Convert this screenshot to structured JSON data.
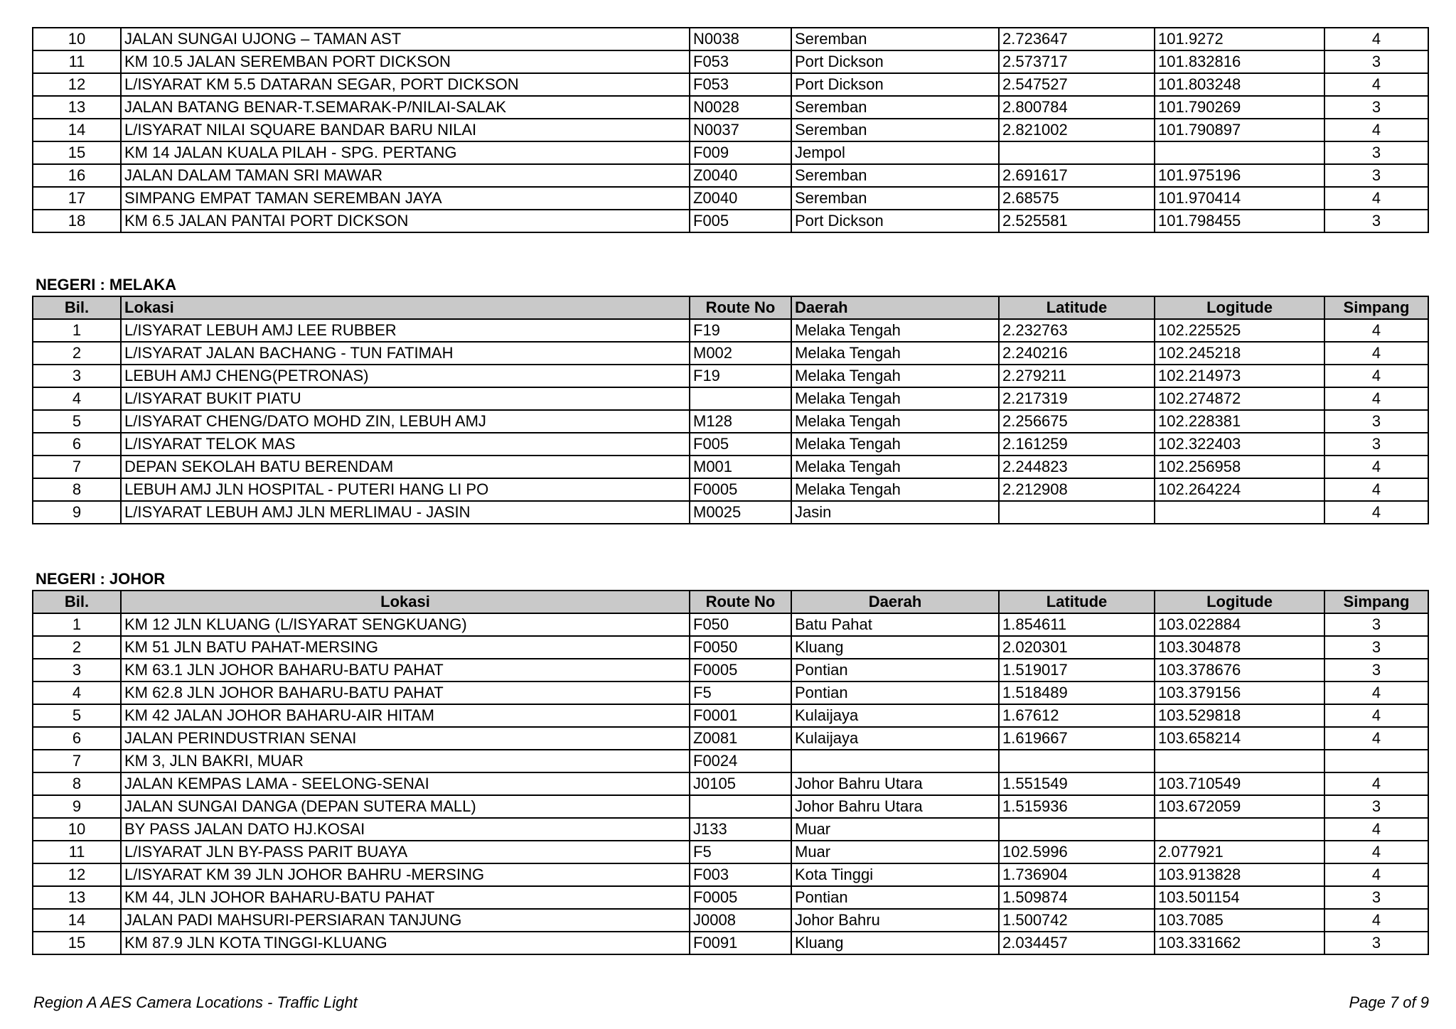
{
  "tables": [
    {
      "rows": [
        [
          "10",
          "JALAN SUNGAI UJONG – TAMAN AST",
          "N0038",
          "Seremban",
          "2.723647",
          "101.9272",
          "4"
        ],
        [
          "11",
          "KM 10.5 JALAN SEREMBAN PORT DICKSON",
          "F053",
          "Port Dickson",
          "2.573717",
          "101.832816",
          "3"
        ],
        [
          "12",
          "L/ISYARAT KM 5.5 DATARAN SEGAR, PORT DICKSON",
          "F053",
          "Port Dickson",
          "2.547527",
          "101.803248",
          "4"
        ],
        [
          "13",
          "JALAN BATANG BENAR-T.SEMARAK-P/NILAI-SALAK",
          "N0028",
          "Seremban",
          "2.800784",
          "101.790269",
          "3"
        ],
        [
          "14",
          "L/ISYARAT NILAI SQUARE BANDAR BARU NILAI",
          "N0037",
          "Seremban",
          "2.821002",
          "101.790897",
          "4"
        ],
        [
          "15",
          "KM 14 JALAN KUALA PILAH - SPG. PERTANG",
          "F009",
          "Jempol",
          null,
          null,
          "3"
        ],
        [
          "16",
          "JALAN DALAM TAMAN SRI MAWAR",
          "Z0040",
          "Seremban",
          "2.691617",
          "101.975196",
          "3"
        ],
        [
          "17",
          "SIMPANG EMPAT TAMAN SEREMBAN JAYA",
          "Z0040",
          "Seremban",
          "2.68575",
          "101.970414",
          "4"
        ],
        [
          "18",
          "KM 6.5 JALAN PANTAI PORT DICKSON",
          "F005",
          "Port Dickson",
          "2.525581",
          "101.798455",
          "3"
        ]
      ]
    },
    {
      "title": "NEGERI : MELAKA",
      "header": [
        "Bil.",
        "Lokasi",
        "Route No",
        "Daerah",
        "Latitude",
        "Logitude",
        "Simpang"
      ],
      "rows": [
        [
          "1",
          "L/ISYARAT LEBUH AMJ LEE RUBBER",
          "F19",
          "Melaka Tengah",
          "2.232763",
          "102.225525",
          "4"
        ],
        [
          "2",
          "L/ISYARAT JALAN BACHANG - TUN FATIMAH",
          "M002",
          "Melaka Tengah",
          "2.240216",
          "102.245218",
          "4"
        ],
        [
          "3",
          "LEBUH AMJ CHENG(PETRONAS)",
          "F19",
          "Melaka Tengah",
          "2.279211",
          "102.214973",
          "4"
        ],
        [
          "4",
          "L/ISYARAT BUKIT PIATU",
          null,
          "Melaka Tengah",
          "2.217319",
          "102.274872",
          "4"
        ],
        [
          "5",
          "L/ISYARAT CHENG/DATO MOHD ZIN, LEBUH AMJ",
          "M128",
          "Melaka Tengah",
          "2.256675",
          "102.228381",
          "3"
        ],
        [
          "6",
          "L/ISYARAT TELOK MAS",
          "F005",
          "Melaka Tengah",
          "2.161259",
          "102.322403",
          "3"
        ],
        [
          "7",
          "DEPAN SEKOLAH BATU BERENDAM",
          "M001",
          "Melaka Tengah",
          "2.244823",
          "102.256958",
          "4"
        ],
        [
          "8",
          "LEBUH AMJ JLN HOSPITAL - PUTERI HANG LI PO",
          "F0005",
          "Melaka Tengah",
          "2.212908",
          "102.264224",
          "4"
        ],
        [
          "9",
          "L/ISYARAT LEBUH AMJ JLN MERLIMAU - JASIN",
          "M0025",
          "Jasin",
          null,
          null,
          "4"
        ]
      ]
    },
    {
      "title": "NEGERI : JOHOR",
      "header": [
        "Bil.",
        "Lokasi",
        "Route No",
        "Daerah",
        "Latitude",
        "Logitude",
        "Simpang"
      ],
      "rows": [
        [
          "1",
          "KM 12 JLN KLUANG (L/ISYARAT SENGKUANG)",
          "F050",
          "Batu Pahat",
          "1.854611",
          "103.022884",
          "3"
        ],
        [
          "2",
          "KM 51 JLN BATU PAHAT-MERSING",
          "F0050",
          "Kluang",
          "2.020301",
          "103.304878",
          "3"
        ],
        [
          "3",
          "KM 63.1 JLN JOHOR BAHARU-BATU PAHAT",
          "F0005",
          "Pontian",
          "1.519017",
          "103.378676",
          "3"
        ],
        [
          "4",
          "KM 62.8 JLN JOHOR BAHARU-BATU PAHAT",
          "F5",
          "Pontian",
          "1.518489",
          "103.379156",
          "4"
        ],
        [
          "5",
          "KM 42 JALAN JOHOR BAHARU-AIR HITAM",
          "F0001",
          "Kulaijaya",
          "1.67612",
          "103.529818",
          "4"
        ],
        [
          "6",
          "JALAN PERINDUSTRIAN SENAI",
          "Z0081",
          "Kulaijaya",
          "1.619667",
          "103.658214",
          "4"
        ],
        [
          "7",
          "KM 3, JLN BAKRI, MUAR",
          "F0024",
          null,
          null,
          null,
          null
        ],
        [
          "8",
          "JALAN KEMPAS LAMA - SEELONG-SENAI",
          "J0105",
          "Johor Bahru Utara",
          "1.551549",
          "103.710549",
          "4"
        ],
        [
          "9",
          "JALAN SUNGAI DANGA (DEPAN SUTERA MALL)",
          null,
          "Johor Bahru Utara",
          "1.515936",
          "103.672059",
          "3"
        ],
        [
          "10",
          "BY PASS JALAN DATO HJ.KOSAI",
          "J133",
          "Muar",
          null,
          null,
          "4"
        ],
        [
          "11",
          "L/ISYARAT JLN BY-PASS PARIT BUAYA",
          "F5",
          "Muar",
          "102.5996",
          "2.077921",
          "4"
        ],
        [
          "12",
          "L/ISYARAT KM 39 JLN JOHOR BAHRU -MERSING",
          "F003",
          "Kota Tinggi",
          "1.736904",
          "103.913828",
          "4"
        ],
        [
          "13",
          "KM 44, JLN JOHOR BAHARU-BATU PAHAT",
          "F0005",
          "Pontian",
          "1.509874",
          "103.501154",
          "3"
        ],
        [
          "14",
          "JALAN PADI MAHSURI-PERSIARAN TANJUNG",
          "J0008",
          "Johor Bahru",
          "1.500742",
          "103.7085",
          "4"
        ],
        [
          "15",
          "KM 87.9 JLN KOTA TINGGI-KLUANG",
          "F0091",
          "Kluang",
          "2.034457",
          "103.331662",
          "3"
        ]
      ]
    }
  ],
  "footer": {
    "left": "Region A AES Camera Locations - Traffic Light",
    "right": "Page 7 of 9"
  }
}
